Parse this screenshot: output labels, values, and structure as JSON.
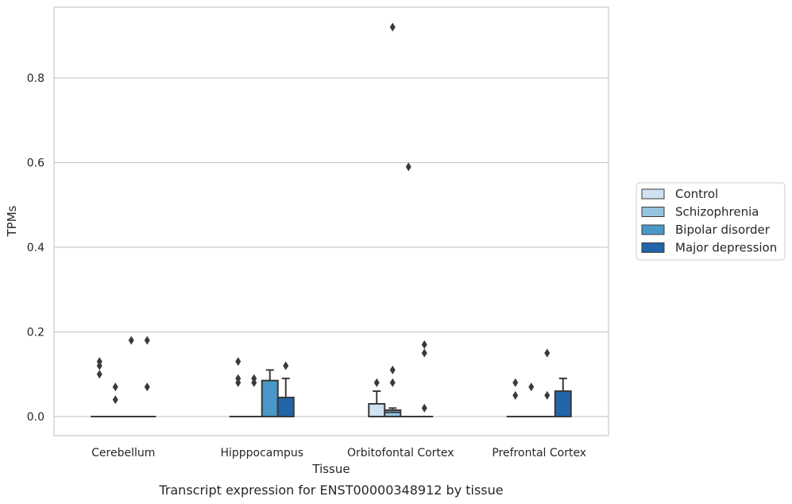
{
  "chart_data": {
    "type": "box",
    "xlabel": "Tissue",
    "ylabel": "TPMs",
    "caption": "Transcript expression for ENST00000348912 by tissue",
    "ylim": [
      -0.045,
      0.97
    ],
    "yticks": [
      0.0,
      0.2,
      0.4,
      0.6,
      0.8
    ],
    "ytick_labels": [
      "0.0",
      "0.2",
      "0.4",
      "0.6",
      "0.8"
    ],
    "grid": "horizontal",
    "legend_position": "right",
    "categories": [
      "Cerebellum",
      "Hipppocampus",
      "Orbitofontal Cortex",
      "Prefrontal Cortex"
    ],
    "series": [
      {
        "name": "Control",
        "color": "#d0e1f2"
      },
      {
        "name": "Schizophrenia",
        "color": "#94c4df"
      },
      {
        "name": "Bipolar disorder",
        "color": "#4a98c9"
      },
      {
        "name": "Major depression",
        "color": "#2264a8"
      }
    ],
    "boxes": [
      [
        {
          "q1": 0,
          "median": 0,
          "q3": 0,
          "whislo": 0,
          "whishi": 0,
          "fliers": [
            0.1,
            0.12,
            0.13
          ]
        },
        {
          "q1": 0,
          "median": 0,
          "q3": 0,
          "whislo": 0,
          "whishi": 0,
          "fliers": [
            0.04,
            0.07
          ]
        },
        {
          "q1": 0,
          "median": 0,
          "q3": 0,
          "whislo": 0,
          "whishi": 0,
          "fliers": [
            0.18
          ]
        },
        {
          "q1": 0,
          "median": 0,
          "q3": 0,
          "whislo": 0,
          "whishi": 0,
          "fliers": [
            0.07,
            0.18
          ]
        }
      ],
      [
        {
          "q1": 0,
          "median": 0,
          "q3": 0,
          "whislo": 0,
          "whishi": 0,
          "fliers": [
            0.08,
            0.09,
            0.13
          ]
        },
        {
          "q1": 0,
          "median": 0,
          "q3": 0,
          "whislo": 0,
          "whishi": 0,
          "fliers": [
            0.08,
            0.09
          ]
        },
        {
          "q1": 0,
          "median": 0,
          "q3": 0.085,
          "whislo": 0,
          "whishi": 0.11,
          "fliers": []
        },
        {
          "q1": 0,
          "median": 0,
          "q3": 0.045,
          "whislo": 0,
          "whishi": 0.09,
          "fliers": [
            0.12
          ]
        }
      ],
      [
        {
          "q1": 0,
          "median": 0,
          "q3": 0.03,
          "whislo": 0,
          "whishi": 0.06,
          "fliers": [
            0.08
          ]
        },
        {
          "q1": 0,
          "median": 0.01,
          "q3": 0.015,
          "whislo": 0,
          "whishi": 0.02,
          "fliers": [
            0.08,
            0.11,
            0.92
          ]
        },
        {
          "q1": 0,
          "median": 0,
          "q3": 0,
          "whislo": 0,
          "whishi": 0,
          "fliers": [
            0.59
          ]
        },
        {
          "q1": 0,
          "median": 0,
          "q3": 0,
          "whislo": 0,
          "whishi": 0,
          "fliers": [
            0.02,
            0.15,
            0.17
          ]
        }
      ],
      [
        {
          "q1": 0,
          "median": 0,
          "q3": 0,
          "whislo": 0,
          "whishi": 0,
          "fliers": [
            0.05,
            0.08
          ]
        },
        {
          "q1": 0,
          "median": 0,
          "q3": 0,
          "whislo": 0,
          "whishi": 0,
          "fliers": [
            0.07
          ]
        },
        {
          "q1": 0,
          "median": 0,
          "q3": 0,
          "whislo": 0,
          "whishi": 0,
          "fliers": [
            0.05,
            0.15
          ]
        },
        {
          "q1": 0,
          "median": 0,
          "q3": 0.06,
          "whislo": 0,
          "whishi": 0.09,
          "fliers": []
        }
      ]
    ]
  }
}
